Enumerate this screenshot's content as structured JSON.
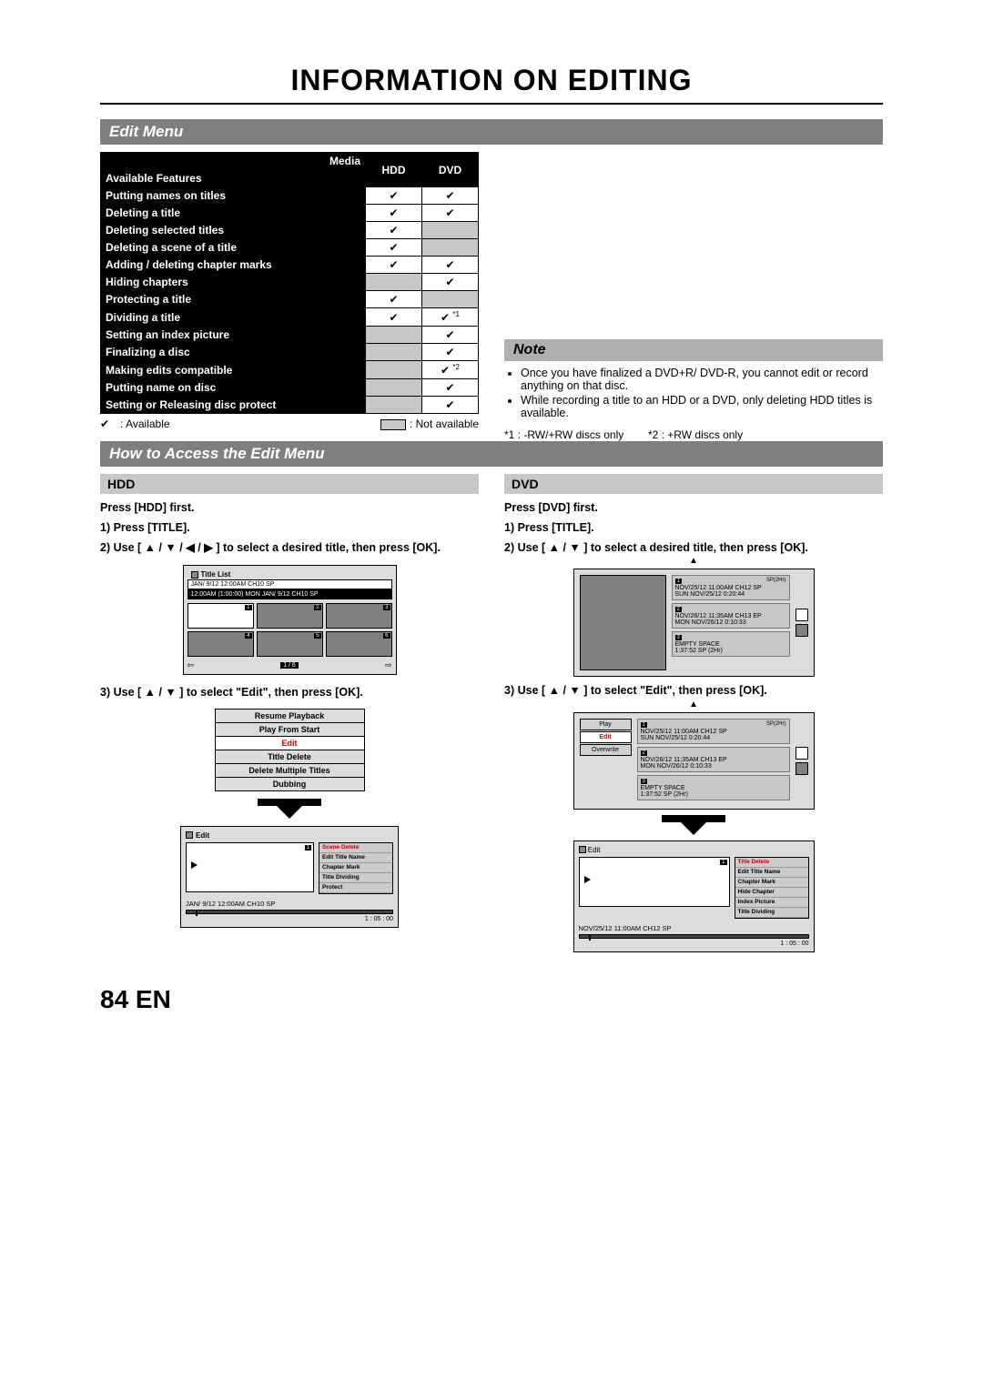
{
  "title": "INFORMATION ON EDITING",
  "section_edit_menu": "Edit Menu",
  "table": {
    "media_hdr": "Media",
    "avail_hdr": "Available Features",
    "col_hdd": "HDD",
    "col_dvd": "DVD",
    "rows": [
      {
        "name": "Putting names on titles",
        "hdd": "✔",
        "dvd": "✔"
      },
      {
        "name": "Deleting a title",
        "hdd": "✔",
        "dvd": "✔"
      },
      {
        "name": "Deleting selected titles",
        "hdd": "✔",
        "dvd": ""
      },
      {
        "name": "Deleting a scene of a title",
        "hdd": "✔",
        "dvd": ""
      },
      {
        "name": "Adding / deleting chapter marks",
        "hdd": "✔",
        "dvd": "✔"
      },
      {
        "name": "Hiding chapters",
        "hdd": "",
        "dvd": "✔"
      },
      {
        "name": "Protecting a title",
        "hdd": "✔",
        "dvd": ""
      },
      {
        "name": "Dividing a title",
        "hdd": "✔",
        "dvd": "✔",
        "dvd_note": "*1"
      },
      {
        "name": "Setting an index picture",
        "hdd": "",
        "dvd": "✔"
      },
      {
        "name": "Finalizing a disc",
        "hdd": "",
        "dvd": "✔"
      },
      {
        "name": "Making edits compatible",
        "hdd": "",
        "dvd": "✔",
        "dvd_note": "*2"
      },
      {
        "name": "Putting name on disc",
        "hdd": "",
        "dvd": "✔"
      },
      {
        "name": "Setting or Releasing disc protect",
        "hdd": "",
        "dvd": "✔"
      }
    ],
    "legend_check": "✔",
    "legend_available": ": Available",
    "legend_notavail": ": Not available",
    "foot1": "*1 : -RW/+RW discs only",
    "foot2": "*2 : +RW discs only"
  },
  "note": {
    "title": "Note",
    "items": [
      "Once you have finalized a DVD+R/ DVD-R, you cannot edit or record anything on that disc.",
      "While recording a title to an HDD or a DVD, only deleting HDD titles is available."
    ]
  },
  "section_access": "How to Access the Edit Menu",
  "hdd": {
    "bar": "HDD",
    "l1": "Press [HDD] first.",
    "l2": "1) Press [TITLE].",
    "l3": "2) Use [ ▲ / ▼ / ◀ / ▶ ] to select a desired title, then press [OK].",
    "l4": "3) Use [ ▲ / ▼ ] to select \"Edit\", then press [OK].",
    "titlelist": {
      "hdr": "Title List",
      "row1": "JAN/ 9/12 12:00AM  CH10  SP",
      "row2": "12:00AM (1:00:00)  MON JAN/  9/12  CH10   SP",
      "page": "1 / 6"
    },
    "menu": [
      "Resume Playback",
      "Play From Start",
      "Edit",
      "Title Delete",
      "Delete Multiple Titles",
      "Dubbing"
    ],
    "edit": {
      "hdr": "Edit",
      "items": [
        "Scene Delete",
        "Edit Title Name",
        "Chapter Mark",
        "Title Dividing",
        "Protect"
      ],
      "status": "JAN/ 9/12 12:00AM CH10  SP",
      "time": "1 : 05 : 00"
    }
  },
  "dvd": {
    "bar": "DVD",
    "l1": "Press [DVD] first.",
    "l2": "1) Press [TITLE].",
    "l3": "2) Use [ ▲ / ▼ ] to select a desired title, then press [OK].",
    "l4": "3) Use [ ▲ / ▼ ] to select \"Edit\", then press [OK].",
    "list": {
      "i1_top": "NOV/25/12  11:00AM CH12  SP",
      "i1_bot": "SUN  NOV/25/12     0:20:44",
      "sp": "SP(2Hr)",
      "i2_top": "NOV/26/12  11:35AM CH13  EP",
      "i2_bot": "MON NOV/26/12    0:10:33",
      "i3_top": "EMPTY SPACE",
      "i3_bot": "1:37:52  SP (2Hr)"
    },
    "menu2": [
      "Play",
      "Edit",
      "Overwrite"
    ],
    "edit": {
      "hdr": "Edit",
      "items": [
        "Title Delete",
        "Edit Title Name",
        "Chapter Mark",
        "Hide Chapter",
        "Index Picture",
        "Title Dividing"
      ],
      "status": "NOV/25/12 11:00AM CH12 SP",
      "time": "1 : 05 : 00"
    }
  },
  "footer": "84 EN"
}
